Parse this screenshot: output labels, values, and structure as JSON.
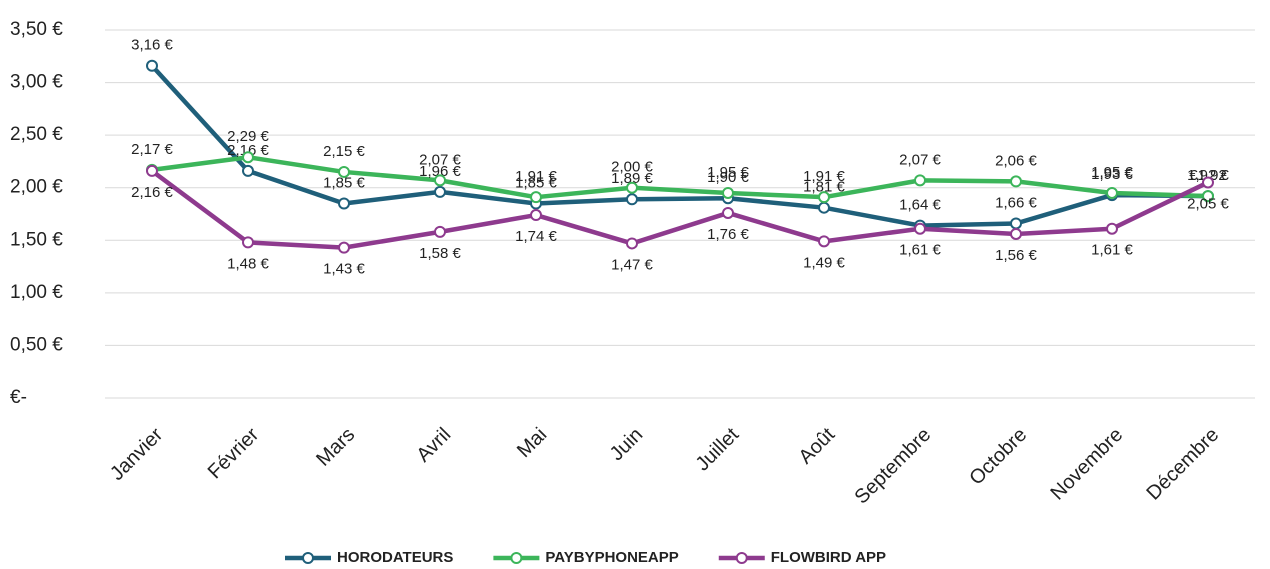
{
  "chart_data": {
    "type": "line",
    "categories": [
      "Janvier",
      "Février",
      "Mars",
      "Avril",
      "Mai",
      "Juin",
      "Juillet",
      "Août",
      "Septembre",
      "Octobre",
      "Novembre",
      "Décembre"
    ],
    "series": [
      {
        "name": "HORODATEURS",
        "color": "#1f5f7a",
        "values": [
          3.16,
          2.16,
          1.85,
          1.96,
          1.85,
          1.89,
          1.9,
          1.81,
          1.64,
          1.66,
          1.93,
          1.92
        ],
        "value_labels": [
          "3,16 €",
          "2,16 €",
          "1,85 €",
          "1,96 €",
          "1,85 €",
          "1,89 €",
          "1,90 €",
          "1,81 €",
          "1,64 €",
          "1,66 €",
          "1,93 €",
          "1,92 €"
        ]
      },
      {
        "name": "PAYBYPHONEAPP",
        "color": "#3cb55a",
        "values": [
          2.17,
          2.29,
          2.15,
          2.07,
          1.91,
          2.0,
          1.95,
          1.91,
          2.07,
          2.06,
          1.95,
          1.92
        ],
        "value_labels": [
          "2,17 €",
          "2,29 €",
          "2,15 €",
          "2,07 €",
          "1,91 €",
          "2,00 €",
          "1,95 €",
          "1,91 €",
          "2,07 €",
          "2,06 €",
          "1,95 €",
          "€1,92"
        ]
      },
      {
        "name": "FLOWBIRD APP",
        "color": "#8e3a8e",
        "values": [
          2.16,
          1.48,
          1.43,
          1.58,
          1.74,
          1.47,
          1.76,
          1.49,
          1.61,
          1.56,
          1.61,
          2.05
        ],
        "value_labels": [
          "2,16 €",
          "1,48 €",
          "1,43 €",
          "1,58 €",
          "1,74 €",
          "1,47 €",
          "1,76 €",
          "1,49 €",
          "1,61 €",
          "1,56 €",
          "1,61 €",
          "2,05 €"
        ]
      }
    ],
    "ylim": [
      0,
      3.5
    ],
    "yticks": [
      {
        "value": 0,
        "label": "€-"
      },
      {
        "value": 0.5,
        "label": "0,50 €"
      },
      {
        "value": 1,
        "label": "1,00 €"
      },
      {
        "value": 1.5,
        "label": "1,50 €"
      },
      {
        "value": 2,
        "label": "2,00 €"
      },
      {
        "value": 2.5,
        "label": "2,50 €"
      },
      {
        "value": 3,
        "label": "3,00  €"
      },
      {
        "value": 3.5,
        "label": "3,50 €"
      }
    ],
    "grid": true,
    "legend": "bottom"
  }
}
